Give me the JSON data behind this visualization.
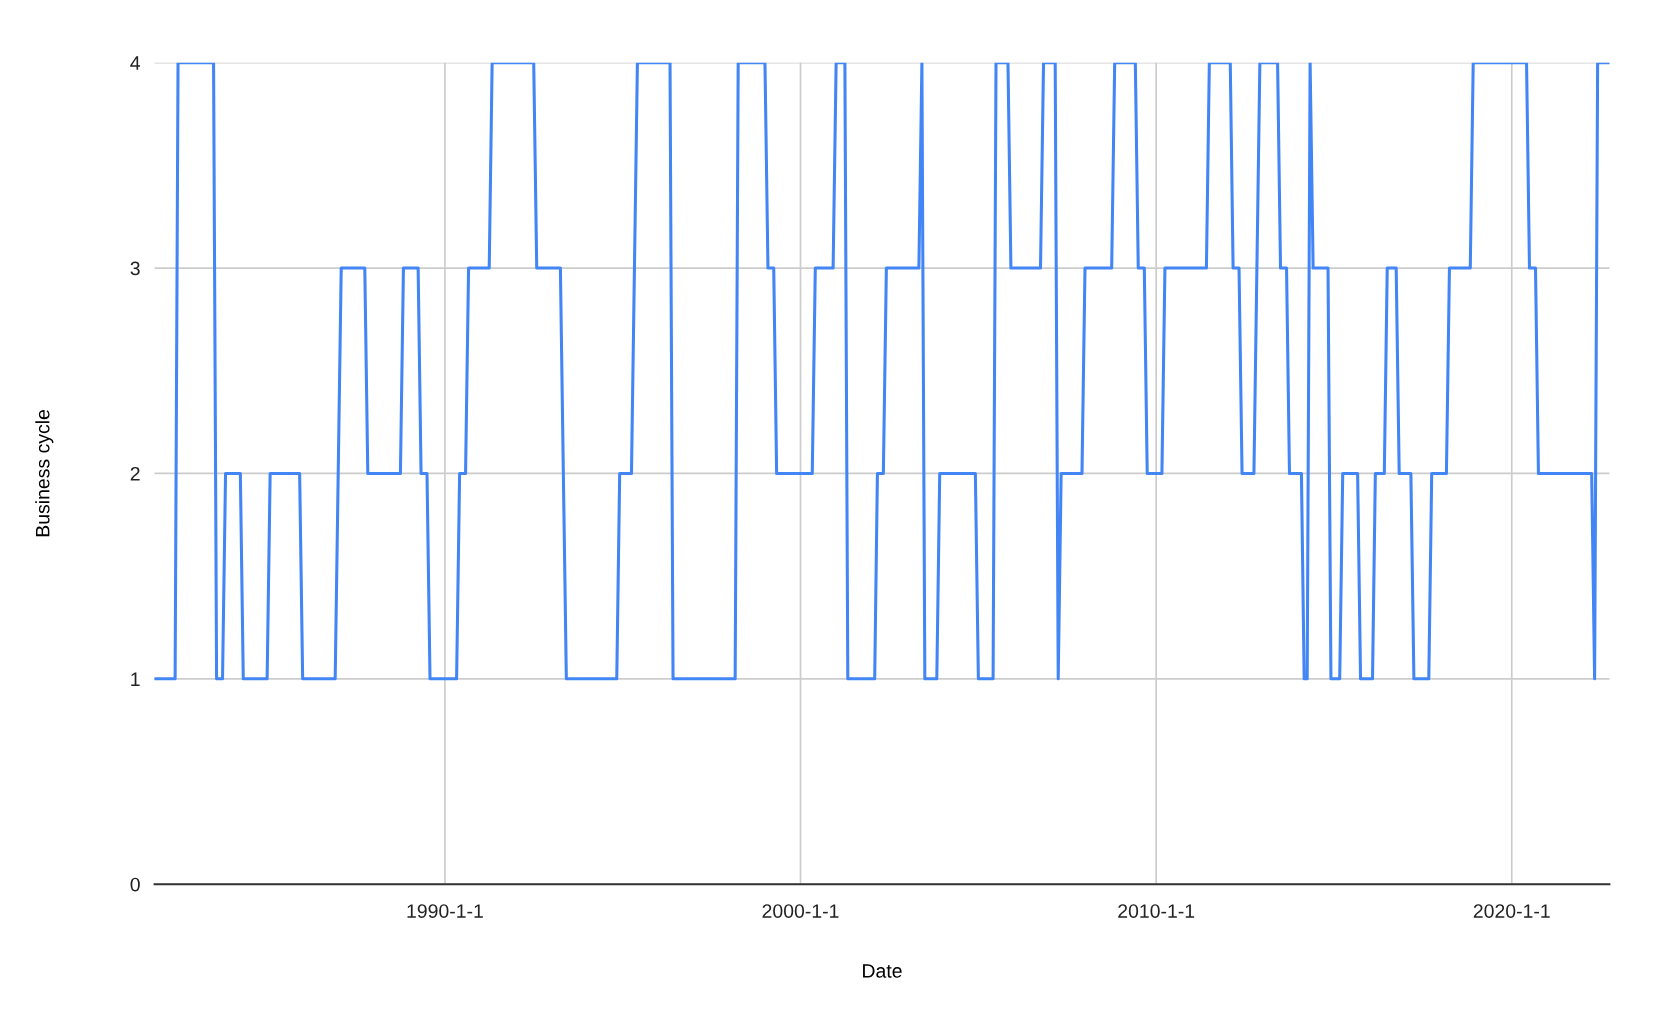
{
  "chart_data": {
    "type": "line",
    "xlabel": "Date",
    "ylabel": "Business cycle",
    "xlim": [
      "1981-11",
      "2022-10"
    ],
    "xticks": [
      {
        "value": "1990-01",
        "label": "1990-1-1"
      },
      {
        "value": "2000-01",
        "label": "2000-1-1"
      },
      {
        "value": "2010-01",
        "label": "2010-1-1"
      },
      {
        "value": "2020-01",
        "label": "2020-1-1"
      }
    ],
    "ylim": [
      0,
      4
    ],
    "yticks": [
      0,
      1,
      2,
      3,
      4
    ],
    "grid": true,
    "marker": "none",
    "line_style": "solid",
    "series": [
      {
        "color": "#4285f4",
        "x": [
          "1981-11",
          "1982-06",
          "1982-07",
          "1983-07",
          "1983-08",
          "1983-10",
          "1983-11",
          "1984-04",
          "1984-05",
          "1985-01",
          "1985-02",
          "1985-12",
          "1986-01",
          "1986-12",
          "1987-02",
          "1987-10",
          "1987-11",
          "1988-10",
          "1988-11",
          "1989-04",
          "1989-05",
          "1989-07",
          "1989-08",
          "1990-05",
          "1990-06",
          "1990-08",
          "1990-09",
          "1991-04",
          "1991-05",
          "1992-07",
          "1992-08",
          "1993-04",
          "1993-06",
          "1994-11",
          "1994-12",
          "1995-04",
          "1995-06",
          "1996-05",
          "1996-06",
          "1998-03",
          "1998-04",
          "1999-01",
          "1999-02",
          "1999-04",
          "1999-05",
          "2000-05",
          "2000-06",
          "2000-12",
          "2001-01",
          "2001-04",
          "2001-05",
          "2002-02",
          "2002-03",
          "2002-05",
          "2002-06",
          "2003-05",
          "2003-06",
          "2003-07",
          "2003-11",
          "2003-12",
          "2004-12",
          "2005-01",
          "2005-06",
          "2005-07",
          "2005-11",
          "2005-12",
          "2006-10",
          "2006-11",
          "2007-03",
          "2007-04",
          "2007-05",
          "2007-12",
          "2008-01",
          "2008-10",
          "2008-11",
          "2009-06",
          "2009-07",
          "2009-09",
          "2009-10",
          "2010-03",
          "2010-04",
          "2011-06",
          "2011-07",
          "2012-02",
          "2012-03",
          "2012-05",
          "2012-06",
          "2012-10",
          "2012-12",
          "2013-06",
          "2013-07",
          "2013-09",
          "2013-10",
          "2014-02",
          "2014-03",
          "2014-04",
          "2014-05",
          "2014-06",
          "2014-11",
          "2014-12",
          "2015-03",
          "2015-04",
          "2015-09",
          "2015-10",
          "2016-02",
          "2016-03",
          "2016-06",
          "2016-07",
          "2016-10",
          "2016-11",
          "2017-03",
          "2017-04",
          "2017-09",
          "2017-10",
          "2018-03",
          "2018-04",
          "2018-11",
          "2018-12",
          "2020-06",
          "2020-07",
          "2020-09",
          "2020-10",
          "2022-04",
          "2022-05",
          "2022-06",
          "2022-10"
        ],
        "values": [
          1,
          1,
          4,
          4,
          1,
          1,
          2,
          2,
          1,
          1,
          2,
          2,
          1,
          1,
          3,
          3,
          2,
          2,
          3,
          3,
          2,
          2,
          1,
          1,
          2,
          2,
          3,
          3,
          4,
          4,
          3,
          3,
          1,
          1,
          2,
          2,
          4,
          4,
          1,
          1,
          4,
          4,
          3,
          3,
          2,
          2,
          3,
          3,
          4,
          4,
          1,
          1,
          2,
          2,
          3,
          3,
          4,
          1,
          1,
          2,
          2,
          1,
          1,
          4,
          4,
          3,
          3,
          4,
          4,
          1,
          2,
          2,
          3,
          3,
          4,
          4,
          3,
          3,
          2,
          2,
          3,
          3,
          4,
          4,
          3,
          3,
          2,
          2,
          4,
          4,
          3,
          3,
          2,
          2,
          1,
          1,
          4,
          3,
          3,
          1,
          1,
          2,
          2,
          1,
          1,
          2,
          2,
          3,
          3,
          2,
          2,
          1,
          1,
          2,
          2,
          3,
          3,
          4,
          4,
          3,
          3,
          2,
          2,
          1,
          4,
          4
        ]
      }
    ]
  }
}
